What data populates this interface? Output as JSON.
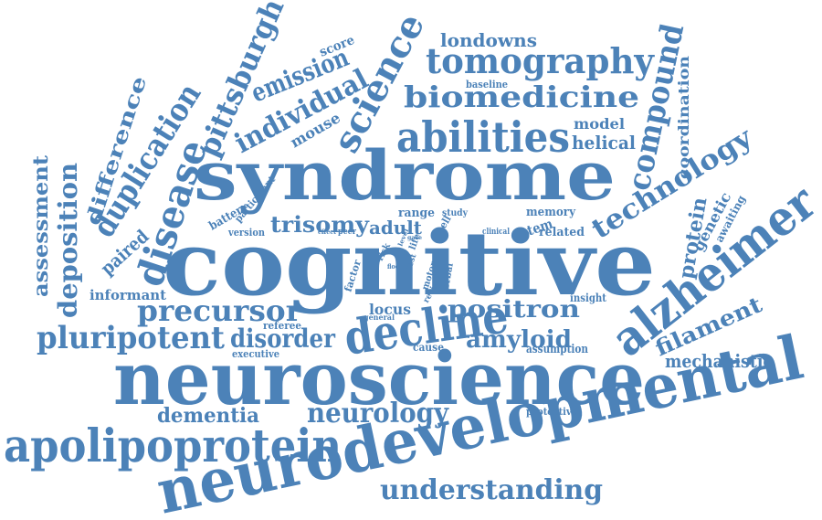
{
  "color": "#4c82b8",
  "words": [
    {
      "id": "cognitive",
      "text": "cognitive"
    },
    {
      "id": "syndrome",
      "text": "syndrome"
    },
    {
      "id": "neuroscience",
      "text": "neuroscience"
    },
    {
      "id": "neurodevelopmental",
      "text": "neurodevelopmental"
    },
    {
      "id": "apolipoprotein",
      "text": "apolipoprotein"
    },
    {
      "id": "alzheimer",
      "text": "alzheimer"
    },
    {
      "id": "decline",
      "text": "decline"
    },
    {
      "id": "abilities",
      "text": "abilities"
    },
    {
      "id": "science",
      "text": "science"
    },
    {
      "id": "tomography",
      "text": "tomography"
    },
    {
      "id": "biomedicine",
      "text": "biomedicine"
    },
    {
      "id": "compound",
      "text": "compound"
    },
    {
      "id": "technology",
      "text": "technology"
    },
    {
      "id": "disease",
      "text": "disease"
    },
    {
      "id": "duplication",
      "text": "duplication"
    },
    {
      "id": "pittsburgh",
      "text": "pittsburgh"
    },
    {
      "id": "individual",
      "text": "individual"
    },
    {
      "id": "emission",
      "text": "emission"
    },
    {
      "id": "pluripotent",
      "text": "pluripotent"
    },
    {
      "id": "precursor",
      "text": "precursor"
    },
    {
      "id": "disorder",
      "text": "disorder"
    },
    {
      "id": "neurology",
      "text": "neurology"
    },
    {
      "id": "understanding",
      "text": "understanding"
    },
    {
      "id": "positron",
      "text": "positron"
    },
    {
      "id": "amyloid",
      "text": "amyloid"
    },
    {
      "id": "trisomy",
      "text": "trisomy"
    },
    {
      "id": "deposition",
      "text": "deposition"
    },
    {
      "id": "difference",
      "text": "difference"
    },
    {
      "id": "assessment",
      "text": "assessment"
    },
    {
      "id": "paired",
      "text": "paired"
    },
    {
      "id": "dementia",
      "text": "dementia"
    },
    {
      "id": "filament",
      "text": "filament"
    },
    {
      "id": "mechanistic",
      "text": "mechanistic"
    },
    {
      "id": "londowns",
      "text": "londowns"
    },
    {
      "id": "model",
      "text": "model"
    },
    {
      "id": "helical",
      "text": "helical"
    },
    {
      "id": "coordination",
      "text": "coordination"
    },
    {
      "id": "protein",
      "text": "protein"
    },
    {
      "id": "genetic",
      "text": "genetic"
    },
    {
      "id": "mouse",
      "text": "mouse"
    },
    {
      "id": "score",
      "text": "score"
    },
    {
      "id": "battery",
      "text": "battery"
    },
    {
      "id": "participant",
      "text": "participant"
    },
    {
      "id": "range",
      "text": "range"
    },
    {
      "id": "adult",
      "text": "adult"
    },
    {
      "id": "memory",
      "text": "memory"
    },
    {
      "id": "stem",
      "text": "stem"
    },
    {
      "id": "related",
      "text": "related"
    },
    {
      "id": "awaiting",
      "text": "awaiting"
    },
    {
      "id": "locus",
      "text": "locus"
    },
    {
      "id": "informant",
      "text": "informant"
    },
    {
      "id": "insight",
      "text": "insight"
    },
    {
      "id": "referee",
      "text": "referee"
    },
    {
      "id": "executive",
      "text": "executive"
    },
    {
      "id": "cause",
      "text": "cause"
    },
    {
      "id": "assumption",
      "text": "assumption"
    },
    {
      "id": "protective",
      "text": "protective"
    },
    {
      "id": "baseline",
      "text": "baseline"
    },
    {
      "id": "version",
      "text": "version"
    },
    {
      "id": "study",
      "text": "study"
    },
    {
      "id": "cell",
      "text": "cell"
    },
    {
      "id": "clinical",
      "text": "clinical"
    },
    {
      "id": "factor",
      "text": "factor"
    },
    {
      "id": "risk",
      "text": "risk"
    },
    {
      "id": "motor",
      "text": "motor"
    },
    {
      "id": "verbal",
      "text": "verbal"
    },
    {
      "id": "review",
      "text": "review"
    },
    {
      "id": "general",
      "text": "general"
    },
    {
      "id": "peer",
      "text": "peer"
    },
    {
      "id": "effect",
      "text": "effect"
    },
    {
      "id": "life",
      "text": "life"
    },
    {
      "id": "test",
      "text": "test"
    },
    {
      "id": "level",
      "text": "level"
    },
    {
      "id": "floor",
      "text": "floor"
    },
    {
      "id": "gaze",
      "text": "gaze"
    }
  ]
}
